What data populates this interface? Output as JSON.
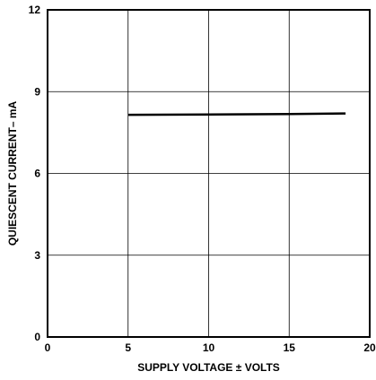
{
  "chart_data": {
    "type": "line",
    "title": "",
    "xlabel": "SUPPLY VOLTAGE ± VOLTS",
    "ylabel": "QUIESCENT CURRENT– mA",
    "xlim": [
      0,
      20
    ],
    "ylim": [
      0,
      12
    ],
    "xticks": [
      0,
      5,
      10,
      15,
      20
    ],
    "yticks": [
      0,
      3,
      6,
      9,
      12
    ],
    "xtick_labels": [
      "0",
      "5",
      "10",
      "15",
      "20"
    ],
    "ytick_labels": [
      "0",
      "3",
      "6",
      "9",
      "12"
    ],
    "grid": true,
    "series": [
      {
        "x": [
          5,
          10,
          15,
          18.5
        ],
        "values": [
          8.15,
          8.16,
          8.18,
          8.2
        ]
      }
    ],
    "colors": {
      "line": "#000000",
      "grid": "#000000",
      "frame": "#000000"
    }
  }
}
